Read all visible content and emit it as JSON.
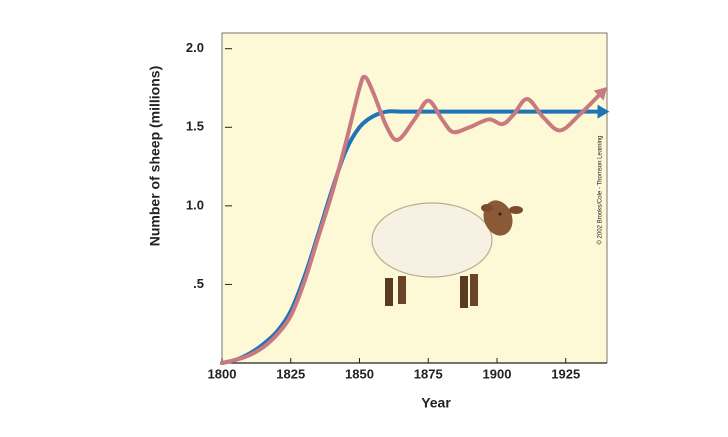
{
  "chart_data": {
    "type": "line",
    "x_label": "Year",
    "y_label": "Number of sheep (millions)",
    "annotation": "© 2002 Brooks/Cole - Thomson Learning",
    "xlim": [
      1800,
      1940
    ],
    "ylim": [
      0,
      2.1
    ],
    "xticks": [
      1800,
      1825,
      1850,
      1875,
      1900,
      1925
    ],
    "yticks": [
      {
        "value": 0.5,
        "label": ".5"
      },
      {
        "value": 1,
        "label": "1.0"
      },
      1.5,
      {
        "value": 2,
        "label": "2.0"
      }
    ],
    "series": [
      {
        "color": "#1f74b8",
        "x": [
          1800,
          1805,
          1810,
          1815,
          1820,
          1825,
          1830,
          1835,
          1840,
          1845,
          1850,
          1855,
          1860,
          1865,
          1875,
          1885,
          1895,
          1905,
          1915,
          1925,
          1938
        ],
        "values": [
          0,
          0.02,
          0.06,
          0.12,
          0.2,
          0.33,
          0.55,
          0.82,
          1.1,
          1.35,
          1.5,
          1.57,
          1.6,
          1.6,
          1.6,
          1.6,
          1.6,
          1.6,
          1.6,
          1.6,
          1.6
        ]
      },
      {
        "color": "#c97a80",
        "x": [
          1800,
          1805,
          1810,
          1815,
          1820,
          1825,
          1830,
          1835,
          1840,
          1845,
          1850,
          1852,
          1855,
          1860,
          1864,
          1870,
          1875,
          1880,
          1884,
          1890,
          1897,
          1902,
          1906,
          1911,
          1917,
          1923,
          1930,
          1938
        ],
        "values": [
          0,
          0.02,
          0.05,
          0.1,
          0.18,
          0.3,
          0.52,
          0.8,
          1.08,
          1.4,
          1.75,
          1.82,
          1.72,
          1.5,
          1.42,
          1.55,
          1.67,
          1.55,
          1.47,
          1.5,
          1.55,
          1.52,
          1.58,
          1.68,
          1.56,
          1.48,
          1.58,
          1.72
        ]
      }
    ]
  }
}
